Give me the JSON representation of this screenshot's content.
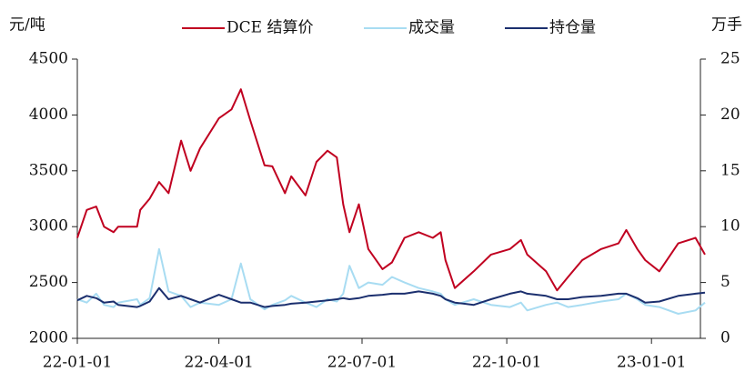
{
  "chart_data": {
    "type": "line",
    "ylabel": "元/吨",
    "y2label": "万手",
    "x": [
      "22-01-01",
      "22-01-07",
      "22-01-13",
      "22-01-18",
      "22-01-24",
      "22-01-27",
      "22-02-08",
      "22-02-10",
      "22-02-16",
      "22-02-22",
      "22-02-28",
      "22-03-08",
      "22-03-14",
      "22-03-20",
      "22-04-01",
      "22-04-09",
      "22-04-15",
      "22-04-21",
      "22-04-30",
      "22-05-05",
      "22-05-13",
      "22-05-17",
      "22-05-26",
      "22-06-02",
      "22-06-09",
      "22-06-15",
      "22-06-19",
      "22-06-23",
      "22-06-29",
      "22-07-05",
      "22-07-14",
      "22-07-20",
      "22-07-28",
      "22-08-06",
      "22-08-15",
      "22-08-20",
      "22-08-23",
      "22-08-29",
      "22-09-10",
      "22-09-21",
      "22-10-03",
      "22-10-10",
      "22-10-14",
      "22-10-26",
      "22-11-02",
      "22-11-09",
      "22-11-18",
      "22-11-30",
      "22-12-11",
      "22-12-16",
      "22-12-23",
      "22-12-28",
      "23-01-06",
      "23-01-18",
      "23-01-29",
      "23-02-04"
    ],
    "series": [
      {
        "name": "DCE 结算价",
        "color": "#c00020",
        "axis": "y",
        "values": [
          2900,
          3150,
          3180,
          3000,
          2950,
          3000,
          3000,
          3150,
          3250,
          3400,
          3300,
          3770,
          3500,
          3700,
          3970,
          4050,
          4230,
          3950,
          3550,
          3540,
          3300,
          3450,
          3280,
          3580,
          3680,
          3620,
          3200,
          2950,
          3200,
          2800,
          2620,
          2680,
          2900,
          2950,
          2900,
          2950,
          2700,
          2450,
          2600,
          2750,
          2800,
          2880,
          2750,
          2600,
          2430,
          2550,
          2700,
          2800,
          2850,
          2970,
          2800,
          2700,
          2600,
          2850,
          2900,
          2750
        ]
      },
      {
        "name": "成交量",
        "color": "#a8dcf2",
        "axis": "y2",
        "values": [
          3.5,
          3.2,
          4.0,
          3.0,
          2.8,
          3.2,
          3.5,
          3.0,
          3.6,
          8.0,
          4.2,
          3.8,
          2.8,
          3.2,
          3.0,
          3.5,
          6.7,
          3.5,
          2.6,
          3.0,
          3.4,
          3.8,
          3.2,
          2.8,
          3.5,
          3.3,
          4.0,
          6.5,
          4.5,
          5.0,
          4.8,
          5.5,
          5.0,
          4.5,
          4.2,
          4.0,
          3.5,
          3.0,
          3.5,
          3.0,
          2.8,
          3.2,
          2.5,
          3.0,
          3.2,
          2.8,
          3.0,
          3.3,
          3.5,
          4.0,
          3.5,
          3.0,
          2.8,
          2.2,
          2.5,
          3.2
        ]
      },
      {
        "name": "持仓量",
        "color": "#1b2f6e",
        "axis": "y2",
        "values": [
          3.4,
          3.8,
          3.6,
          3.2,
          3.3,
          3.0,
          2.8,
          2.9,
          3.3,
          4.5,
          3.5,
          3.8,
          3.5,
          3.2,
          3.9,
          3.5,
          3.2,
          3.2,
          2.8,
          2.9,
          3.0,
          3.1,
          3.2,
          3.3,
          3.4,
          3.5,
          3.6,
          3.5,
          3.6,
          3.8,
          3.9,
          4.0,
          4.0,
          4.2,
          4.0,
          3.8,
          3.5,
          3.2,
          3.0,
          3.5,
          4.0,
          4.2,
          4.0,
          3.8,
          3.5,
          3.5,
          3.7,
          3.8,
          4.0,
          4.0,
          3.6,
          3.2,
          3.3,
          3.8,
          4.0,
          4.1
        ]
      }
    ],
    "xlim": [
      "22-01-01",
      "23-02-04"
    ],
    "xticks": [
      "22-01-01",
      "22-04-01",
      "22-07-01",
      "22-10-01",
      "23-01-01"
    ],
    "ylim": [
      2000,
      4500
    ],
    "yticks": [
      2000,
      2500,
      3000,
      3500,
      4000,
      4500
    ],
    "y2lim": [
      0,
      25
    ],
    "y2ticks": [
      0,
      5,
      10,
      15,
      20,
      25
    ],
    "grid": false
  }
}
